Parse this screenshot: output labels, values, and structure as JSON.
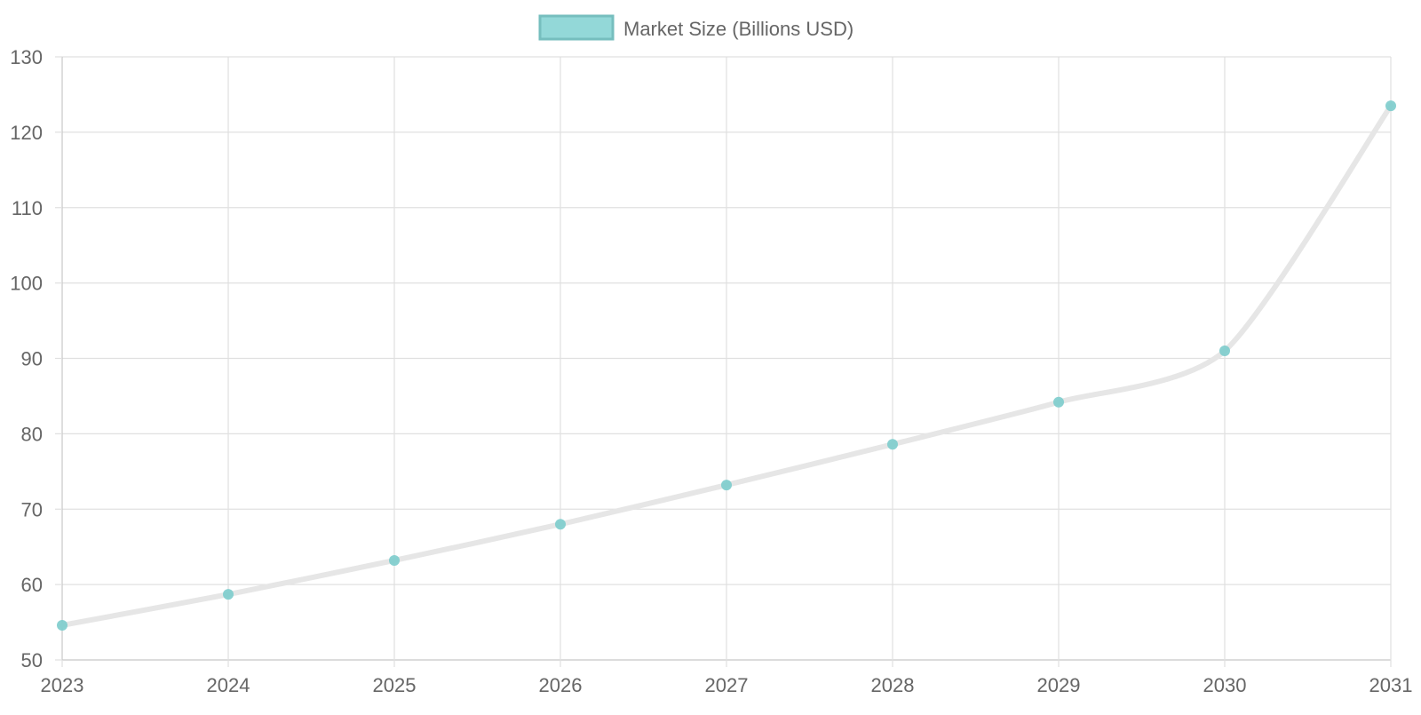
{
  "chart_data": {
    "type": "line",
    "legend": {
      "label": "Market Size (Billions USD)",
      "position": "top",
      "swatch_fill": "#93d8d8",
      "swatch_border": "#76bebe"
    },
    "x": [
      "2023",
      "2024",
      "2025",
      "2026",
      "2027",
      "2028",
      "2029",
      "2030",
      "2031"
    ],
    "series": [
      {
        "name": "Market Size (Billions USD)",
        "values": [
          54.6,
          58.7,
          63.2,
          68.0,
          73.2,
          78.6,
          84.2,
          91.0,
          123.5
        ],
        "line_color": "#e6e6e6",
        "point_color": "#7ccccc"
      }
    ],
    "ylim": [
      50,
      130
    ],
    "y_ticks": [
      "50",
      "60",
      "70",
      "80",
      "90",
      "100",
      "110",
      "120",
      "130"
    ],
    "grid": true,
    "grid_color": "#e0e0e0",
    "axis_text_color": "#666666"
  }
}
